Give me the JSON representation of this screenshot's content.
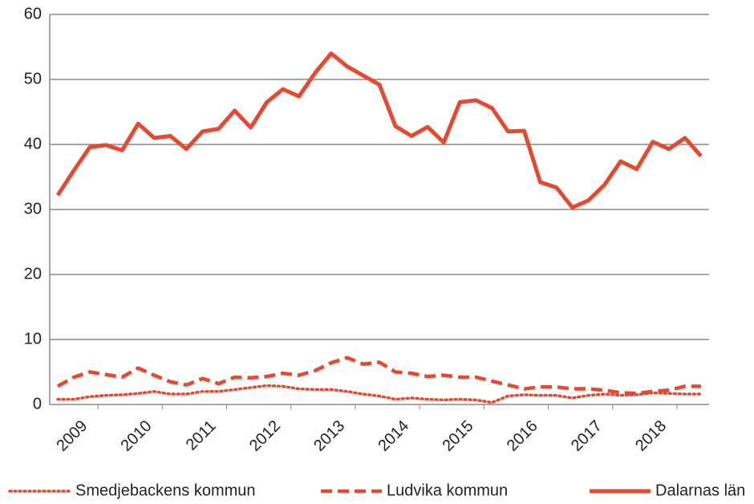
{
  "chart_data": {
    "type": "line",
    "categories": [
      null,
      "2009",
      null,
      null,
      null,
      "2010",
      null,
      null,
      null,
      "2011",
      null,
      null,
      null,
      "2012",
      null,
      null,
      null,
      "2013",
      null,
      null,
      null,
      "2014",
      null,
      null,
      null,
      "2015",
      null,
      null,
      null,
      "2016",
      null,
      null,
      null,
      "2017",
      null,
      null,
      null,
      "2018",
      null,
      null,
      null
    ],
    "series": [
      {
        "name": "Smedjebackens kommun",
        "color": "#e5492f",
        "line_style": "dotted",
        "values": [
          0.8,
          0.8,
          1.2,
          1.4,
          1.5,
          1.7,
          2,
          1.6,
          1.6,
          2,
          2,
          2.3,
          2.6,
          2.9,
          2.8,
          2.4,
          2.3,
          2.3,
          2,
          1.6,
          1.3,
          0.8,
          1,
          0.8,
          0.7,
          0.8,
          0.7,
          0.3,
          1.3,
          1.5,
          1.4,
          1.4,
          1,
          1.4,
          1.6,
          1.4,
          1.5,
          1.8,
          1.7,
          1.6,
          1.6
        ]
      },
      {
        "name": "Ludvika kommun",
        "color": "#e5492f",
        "line_style": "dashed",
        "values": [
          2.8,
          4.2,
          5,
          4.6,
          4.2,
          5.6,
          4.5,
          3.5,
          3,
          4,
          3.2,
          4.2,
          4.1,
          4.3,
          4.8,
          4.5,
          5.2,
          6.4,
          7.2,
          6.2,
          6.5,
          5,
          4.8,
          4.3,
          4.5,
          4.2,
          4.2,
          3.6,
          3,
          2.4,
          2.7,
          2.7,
          2.4,
          2.4,
          2.2,
          1.8,
          1.7,
          2,
          2.2,
          2.8,
          2.8
        ]
      },
      {
        "name": "Dalarnas län",
        "color": "#e5492f",
        "line_style": "solid",
        "values": [
          32.2,
          36,
          39.6,
          39.9,
          39.1,
          43.2,
          41,
          41.3,
          39.3,
          42,
          42.4,
          45.2,
          42.6,
          46.5,
          48.5,
          47.4,
          51,
          54,
          52,
          50.6,
          49.2,
          42.8,
          41.3,
          42.7,
          40.3,
          46.5,
          46.8,
          45.6,
          42,
          42.1,
          34.2,
          33.4,
          30.3,
          31.4,
          33.8,
          37.4,
          36.2,
          40.4,
          39.3,
          41,
          38.2
        ]
      }
    ],
    "ylim": [
      0,
      60
    ],
    "yticks": [
      0,
      10,
      20,
      30,
      40,
      50,
      60
    ],
    "grid": true,
    "legend": "bottom"
  }
}
